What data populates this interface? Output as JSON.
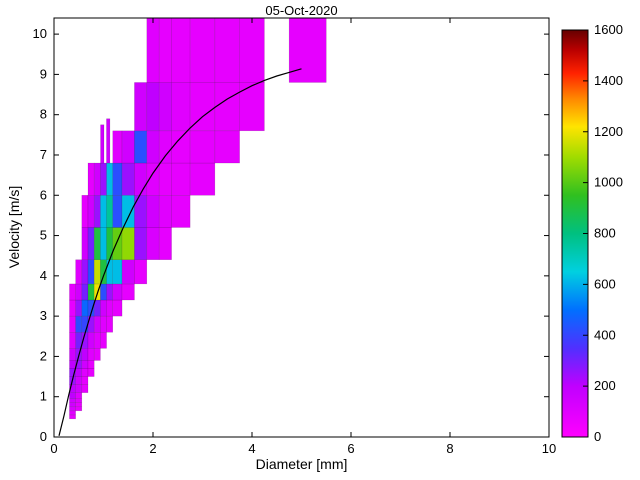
{
  "chart_data": {
    "type": "heatmap",
    "title": "05-Oct-2020",
    "xlabel": "Diameter [mm]",
    "ylabel": "Velocity [m/s]",
    "xlim": [
      0,
      10
    ],
    "ylim": [
      0,
      10.4
    ],
    "xticks": [
      0,
      2,
      4,
      6,
      8,
      10
    ],
    "yticks": [
      0,
      1,
      2,
      3,
      4,
      5,
      6,
      7,
      8,
      9,
      10
    ],
    "grid": false,
    "axis_color": "#000000",
    "background": "#ffffff",
    "colorbar": {
      "min": 0,
      "max": 1600,
      "ticks": [
        0,
        200,
        400,
        600,
        800,
        1000,
        1200,
        1400,
        1600
      ],
      "position": "right"
    },
    "colormap": [
      [
        0,
        "#ff00ff"
      ],
      [
        200,
        "#c000ff"
      ],
      [
        350,
        "#5030ff"
      ],
      [
        500,
        "#0070ff"
      ],
      [
        650,
        "#00d0e0"
      ],
      [
        800,
        "#00c080"
      ],
      [
        950,
        "#30c020"
      ],
      [
        1100,
        "#a0dc00"
      ],
      [
        1220,
        "#ffe400"
      ],
      [
        1330,
        "#ff8800"
      ],
      [
        1430,
        "#ff2200"
      ],
      [
        1520,
        "#bb0000"
      ],
      [
        1600,
        "#660000"
      ]
    ],
    "diameter_edges": [
      0.312,
      0.437,
      0.562,
      0.687,
      0.812,
      0.937,
      1.062,
      1.187,
      1.375,
      1.625,
      1.875,
      2.125,
      2.375,
      2.75,
      3.25,
      3.75,
      4.25,
      4.75,
      5.5
    ],
    "velocity_edges": [
      0.45,
      0.55,
      0.65,
      0.75,
      0.85,
      0.95,
      1.1,
      1.3,
      1.5,
      1.7,
      1.9,
      2.2,
      2.6,
      3.0,
      3.4,
      3.8,
      4.4,
      5.2,
      6.0,
      6.8,
      7.6,
      8.8,
      10.4
    ],
    "counts_note": "rows bottom-to-top matching velocity_edges intervals; columns left-to-right matching diameter_edges intervals; 0 = no data (white)",
    "counts": [
      [
        80,
        0,
        0,
        0,
        0,
        0,
        0,
        0,
        0,
        0,
        0,
        0,
        0,
        0,
        0,
        0,
        0,
        0
      ],
      [
        100,
        0,
        0,
        0,
        0,
        0,
        0,
        0,
        0,
        0,
        0,
        0,
        0,
        0,
        0,
        0,
        0,
        0
      ],
      [
        120,
        80,
        0,
        0,
        0,
        0,
        0,
        0,
        0,
        0,
        0,
        0,
        0,
        0,
        0,
        0,
        0,
        0
      ],
      [
        150,
        80,
        0,
        0,
        0,
        0,
        0,
        0,
        0,
        0,
        0,
        0,
        0,
        0,
        0,
        0,
        0,
        0
      ],
      [
        150,
        100,
        0,
        0,
        0,
        0,
        0,
        0,
        0,
        0,
        0,
        0,
        0,
        0,
        0,
        0,
        0,
        0
      ],
      [
        200,
        100,
        0,
        0,
        0,
        0,
        0,
        0,
        0,
        0,
        0,
        0,
        0,
        0,
        0,
        0,
        0,
        0
      ],
      [
        200,
        150,
        80,
        0,
        0,
        0,
        0,
        0,
        0,
        0,
        0,
        0,
        0,
        0,
        0,
        0,
        0,
        0
      ],
      [
        250,
        150,
        80,
        0,
        0,
        0,
        0,
        0,
        0,
        0,
        0,
        0,
        0,
        0,
        0,
        0,
        0,
        0
      ],
      [
        250,
        200,
        100,
        80,
        0,
        0,
        0,
        0,
        0,
        0,
        0,
        0,
        0,
        0,
        0,
        0,
        0,
        0
      ],
      [
        200,
        250,
        150,
        80,
        0,
        0,
        0,
        0,
        0,
        0,
        0,
        0,
        0,
        0,
        0,
        0,
        0,
        0
      ],
      [
        150,
        250,
        200,
        100,
        80,
        0,
        0,
        0,
        0,
        0,
        0,
        0,
        0,
        0,
        0,
        0,
        0,
        0
      ],
      [
        100,
        300,
        250,
        150,
        100,
        80,
        0,
        0,
        0,
        0,
        0,
        0,
        0,
        0,
        0,
        0,
        0,
        0
      ],
      [
        80,
        420,
        400,
        250,
        150,
        100,
        80,
        0,
        0,
        0,
        0,
        0,
        0,
        0,
        0,
        0,
        0,
        0
      ],
      [
        80,
        250,
        480,
        420,
        300,
        150,
        100,
        80,
        0,
        0,
        0,
        0,
        0,
        0,
        0,
        0,
        0,
        0
      ],
      [
        80,
        150,
        300,
        900,
        1200,
        420,
        250,
        150,
        80,
        0,
        0,
        0,
        0,
        0,
        0,
        0,
        0,
        0
      ],
      [
        0,
        100,
        250,
        420,
        1150,
        900,
        620,
        620,
        150,
        80,
        0,
        0,
        0,
        0,
        0,
        0,
        0,
        0
      ],
      [
        0,
        0,
        150,
        300,
        900,
        620,
        900,
        1020,
        1080,
        250,
        120,
        80,
        0,
        0,
        0,
        0,
        0,
        0
      ],
      [
        0,
        0,
        80,
        150,
        250,
        620,
        760,
        420,
        620,
        250,
        150,
        100,
        80,
        0,
        0,
        0,
        0,
        0
      ],
      [
        0,
        0,
        0,
        80,
        150,
        250,
        620,
        420,
        250,
        150,
        100,
        80,
        80,
        80,
        0,
        0,
        0,
        0
      ],
      [
        0,
        0,
        0,
        0,
        0,
        0,
        0,
        100,
        150,
        420,
        150,
        100,
        80,
        80,
        80,
        0,
        0,
        0
      ],
      [
        0,
        0,
        0,
        0,
        0,
        0,
        0,
        0,
        0,
        150,
        200,
        150,
        100,
        80,
        80,
        80,
        0,
        0
      ],
      [
        0,
        0,
        0,
        0,
        0,
        0,
        0,
        0,
        0,
        0,
        100,
        80,
        80,
        80,
        80,
        80,
        0,
        80
      ]
    ],
    "extra_cells": [
      {
        "d": [
          0.94,
          1.01
        ],
        "v": [
          6.8,
          7.75
        ],
        "value": 150
      },
      {
        "d": [
          1.06,
          1.13
        ],
        "v": [
          6.8,
          7.9
        ],
        "value": 150
      }
    ],
    "curve": {
      "name": "terminal-velocity-fit",
      "color": "#000000",
      "points": [
        [
          0.1,
          0.03
        ],
        [
          0.2,
          0.52
        ],
        [
          0.3,
          1.05
        ],
        [
          0.4,
          1.55
        ],
        [
          0.5,
          2.02
        ],
        [
          0.6,
          2.46
        ],
        [
          0.7,
          2.88
        ],
        [
          0.8,
          3.28
        ],
        [
          0.9,
          3.65
        ],
        [
          1.0,
          4.0
        ],
        [
          1.2,
          4.64
        ],
        [
          1.4,
          5.2
        ],
        [
          1.6,
          5.71
        ],
        [
          1.8,
          6.15
        ],
        [
          2.0,
          6.55
        ],
        [
          2.25,
          6.98
        ],
        [
          2.5,
          7.35
        ],
        [
          2.75,
          7.67
        ],
        [
          3.0,
          7.95
        ],
        [
          3.25,
          8.18
        ],
        [
          3.5,
          8.39
        ],
        [
          3.75,
          8.56
        ],
        [
          4.0,
          8.72
        ],
        [
          4.25,
          8.85
        ],
        [
          4.5,
          8.96
        ],
        [
          4.75,
          9.05
        ],
        [
          5.0,
          9.14
        ]
      ]
    }
  }
}
